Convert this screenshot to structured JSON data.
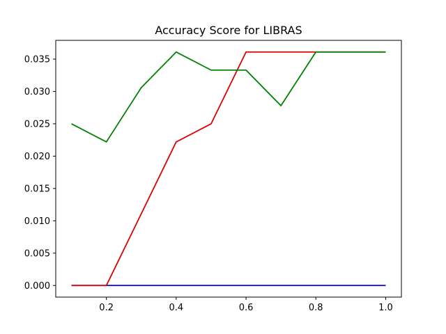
{
  "chart_data": {
    "type": "line",
    "title": "Accuracy Score for LIBRAS",
    "xlabel": "",
    "ylabel": "",
    "x": [
      0.1,
      0.2,
      0.3,
      0.4,
      0.5,
      0.6,
      0.7,
      0.8,
      0.9,
      1.0
    ],
    "xlim": [
      0.055,
      1.045
    ],
    "ylim": [
      -0.0018,
      0.0379
    ],
    "xticks": [
      0.2,
      0.4,
      0.6,
      0.8,
      1.0
    ],
    "xtick_labels": [
      "0.2",
      "0.4",
      "0.6",
      "0.8",
      "1.0"
    ],
    "yticks": [
      0.0,
      0.005,
      0.01,
      0.015,
      0.02,
      0.025,
      0.03,
      0.035
    ],
    "ytick_labels": [
      "0.000",
      "0.005",
      "0.010",
      "0.015",
      "0.020",
      "0.025",
      "0.030",
      "0.035"
    ],
    "grid": false,
    "series": [
      {
        "color": "#0000cc",
        "values": [
          0,
          0,
          0,
          0,
          0,
          0,
          0,
          0,
          0,
          0
        ]
      },
      {
        "color": "#dd0000",
        "values": [
          0,
          0,
          0.0111,
          0.0222,
          0.025,
          0.0361,
          0.0361,
          0.0361,
          0.0361,
          0.0361
        ]
      },
      {
        "color": "#008000",
        "values": [
          0.025,
          0.0222,
          0.0306,
          0.0361,
          0.0333,
          0.0333,
          0.0278,
          0.0361,
          0.0361,
          0.0361
        ]
      }
    ]
  }
}
